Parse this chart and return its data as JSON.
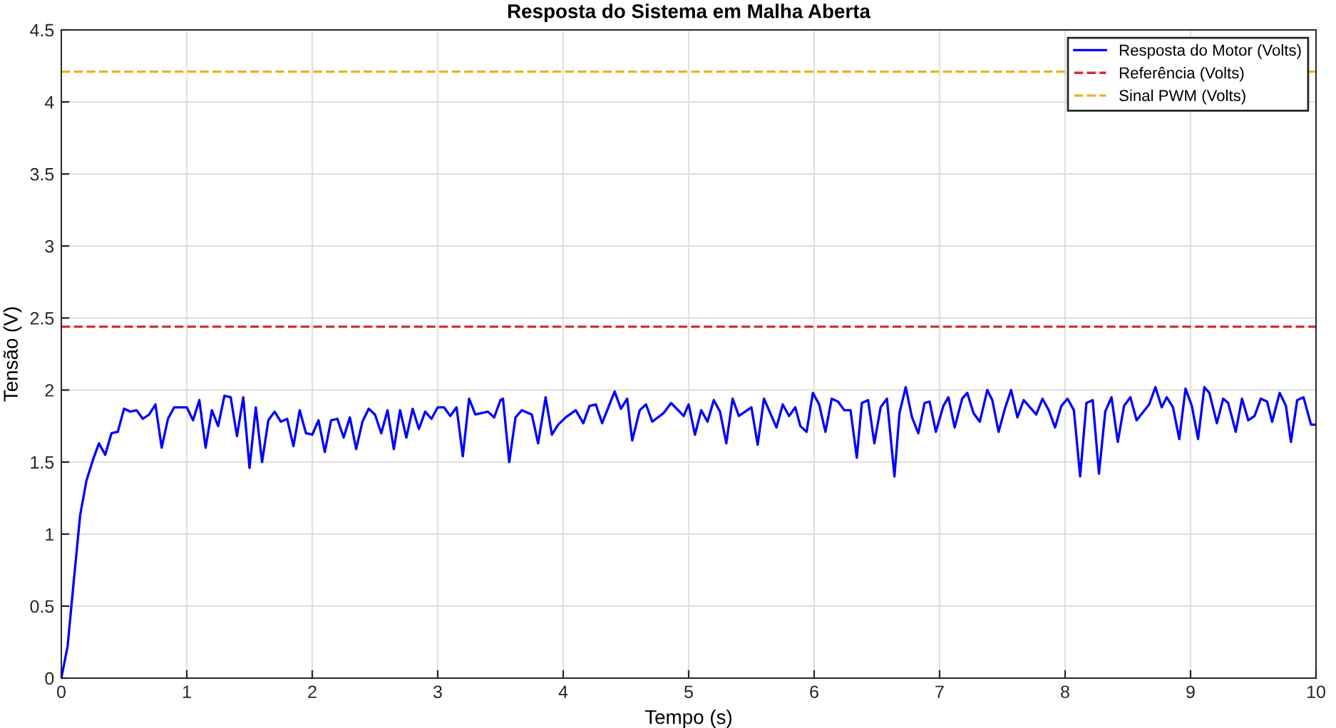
{
  "chart_data": {
    "type": "line",
    "title": "Resposta do Sistema em Malha Aberta",
    "xlabel": "Tempo (s)",
    "ylabel": "Tensão (V)",
    "series": [
      {
        "name": "Resposta do Motor (Volts)",
        "color": "#0000ff",
        "x": [
          0,
          0.05,
          0.1,
          0.15,
          0.2,
          0.25,
          0.3,
          0.35,
          0.4,
          0.45,
          0.5,
          0.55,
          0.6,
          0.65,
          0.7,
          0.75,
          0.8,
          0.85,
          0.9,
          0.95,
          1.0,
          1.05,
          1.1,
          1.15,
          1.2,
          1.25,
          1.3,
          1.35,
          1.4,
          1.45,
          1.5,
          1.55,
          1.6,
          1.65,
          1.7,
          1.75,
          1.8,
          1.85,
          1.9,
          1.95,
          2.0,
          2.05,
          2.1,
          2.15,
          2.2,
          2.25,
          2.3,
          2.35,
          2.4,
          2.45,
          2.5,
          2.55,
          2.6,
          2.65,
          2.7,
          2.75,
          2.8,
          2.85,
          2.9,
          2.95,
          3.0,
          3.05,
          3.1,
          3.15,
          3.2,
          3.25,
          3.3,
          3.35,
          3.4,
          3.45,
          3.5,
          3.52,
          3.57,
          3.62,
          3.67,
          3.75,
          3.8,
          3.86,
          3.91,
          3.96,
          4.02,
          4.1,
          4.16,
          4.21,
          4.26,
          4.31,
          4.41,
          4.46,
          4.51,
          4.55,
          4.61,
          4.66,
          4.71,
          4.8,
          4.86,
          4.96,
          5.0,
          5.05,
          5.1,
          5.15,
          5.2,
          5.25,
          5.3,
          5.35,
          5.4,
          5.5,
          5.55,
          5.6,
          5.7,
          5.75,
          5.8,
          5.85,
          5.89,
          5.94,
          5.99,
          6.04,
          6.09,
          6.14,
          6.19,
          6.24,
          6.29,
          6.34,
          6.38,
          6.43,
          6.48,
          6.53,
          6.58,
          6.64,
          6.68,
          6.73,
          6.78,
          6.83,
          6.88,
          6.92,
          6.97,
          7.03,
          7.07,
          7.12,
          7.18,
          7.22,
          7.27,
          7.32,
          7.38,
          7.42,
          7.47,
          7.52,
          7.57,
          7.62,
          7.67,
          7.77,
          7.82,
          7.87,
          7.92,
          7.97,
          8.02,
          8.07,
          8.12,
          8.17,
          8.22,
          8.27,
          8.32,
          8.37,
          8.42,
          8.47,
          8.52,
          8.57,
          8.67,
          8.72,
          8.77,
          8.81,
          8.86,
          8.91,
          8.96,
          9.01,
          9.06,
          9.11,
          9.15,
          9.21,
          9.26,
          9.3,
          9.36,
          9.41,
          9.46,
          9.51,
          9.56,
          9.61,
          9.65,
          9.71,
          9.76,
          9.8,
          9.85,
          9.9,
          9.96,
          10
        ],
        "values": [
          0,
          0.22,
          0.68,
          1.13,
          1.37,
          1.51,
          1.63,
          1.55,
          1.7,
          1.71,
          1.87,
          1.85,
          1.86,
          1.8,
          1.83,
          1.9,
          1.6,
          1.8,
          1.88,
          1.88,
          1.88,
          1.79,
          1.93,
          1.6,
          1.86,
          1.75,
          1.96,
          1.95,
          1.68,
          1.95,
          1.46,
          1.88,
          1.5,
          1.79,
          1.85,
          1.78,
          1.8,
          1.61,
          1.86,
          1.7,
          1.69,
          1.79,
          1.57,
          1.79,
          1.8,
          1.67,
          1.81,
          1.59,
          1.78,
          1.87,
          1.83,
          1.7,
          1.86,
          1.59,
          1.86,
          1.67,
          1.87,
          1.73,
          1.85,
          1.8,
          1.88,
          1.88,
          1.82,
          1.88,
          1.54,
          1.94,
          1.83,
          1.84,
          1.85,
          1.81,
          1.93,
          1.94,
          1.5,
          1.81,
          1.86,
          1.83,
          1.63,
          1.95,
          1.69,
          1.76,
          1.81,
          1.86,
          1.77,
          1.89,
          1.9,
          1.77,
          1.99,
          1.87,
          1.94,
          1.65,
          1.86,
          1.9,
          1.78,
          1.84,
          1.91,
          1.82,
          1.9,
          1.69,
          1.86,
          1.78,
          1.93,
          1.85,
          1.63,
          1.94,
          1.82,
          1.88,
          1.62,
          1.94,
          1.74,
          1.9,
          1.82,
          1.88,
          1.75,
          1.71,
          1.98,
          1.9,
          1.71,
          1.94,
          1.92,
          1.86,
          1.86,
          1.53,
          1.91,
          1.93,
          1.63,
          1.88,
          1.94,
          1.4,
          1.84,
          2.02,
          1.81,
          1.7,
          1.91,
          1.92,
          1.71,
          1.89,
          1.95,
          1.74,
          1.94,
          1.98,
          1.84,
          1.78,
          2.0,
          1.93,
          1.71,
          1.87,
          2.0,
          1.81,
          1.93,
          1.83,
          1.94,
          1.86,
          1.74,
          1.89,
          1.94,
          1.86,
          1.4,
          1.91,
          1.93,
          1.42,
          1.85,
          1.95,
          1.64,
          1.89,
          1.95,
          1.79,
          1.9,
          2.02,
          1.88,
          1.95,
          1.88,
          1.66,
          2.01,
          1.89,
          1.66,
          2.02,
          1.98,
          1.77,
          1.94,
          1.91,
          1.71,
          1.94,
          1.79,
          1.82,
          1.94,
          1.92,
          1.78,
          1.98,
          1.89,
          1.64,
          1.93,
          1.95,
          1.76,
          1.76
        ]
      }
    ],
    "ref_lines": [
      {
        "axis": "y",
        "value": 2.44,
        "label": "Referência (Volts)",
        "color": "#d03030",
        "line_style": "dashed"
      },
      {
        "axis": "y",
        "value": 4.21,
        "label": "Sinal PWM (Volts)",
        "color": "#edb120",
        "line_style": "dashed"
      }
    ],
    "xlim": [
      0,
      10
    ],
    "ylim": [
      0,
      4.5
    ],
    "xticks": [
      0,
      1,
      2,
      3,
      4,
      5,
      6,
      7,
      8,
      9,
      10
    ],
    "yticks": [
      0,
      0.5,
      1,
      1.5,
      2,
      2.5,
      3,
      3.5,
      4,
      4.5
    ],
    "grid": true,
    "legend": "top right",
    "line_style": "solid",
    "marker": "none"
  }
}
